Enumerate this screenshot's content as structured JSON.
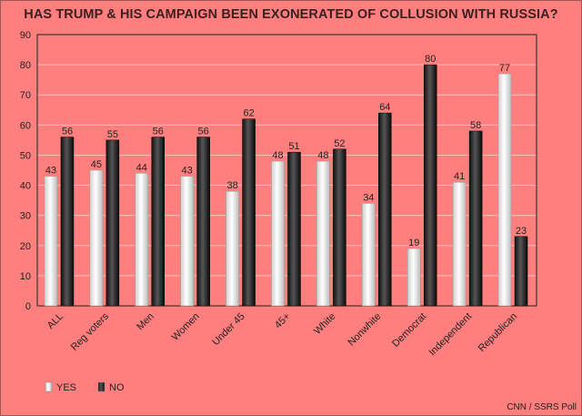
{
  "chart_data": {
    "type": "bar",
    "title": "HAS TRUMP & HIS CAMPAIGN BEEN EXONERATED OF COLLUSION WITH RUSSIA?",
    "xlabel": "",
    "ylabel": "",
    "ylim": [
      0,
      90
    ],
    "yticks": [
      0,
      10,
      20,
      30,
      40,
      50,
      60,
      70,
      80,
      90
    ],
    "grid": true,
    "legend_position": "bottom-left",
    "categories": [
      "ALL",
      "Reg voters",
      "Men",
      "Women",
      "Under 45",
      "45+",
      "White",
      "Nonwhite",
      "Democrat",
      "Independent",
      "Republican"
    ],
    "series": [
      {
        "name": "YES",
        "color": "#ffffff",
        "values": [
          43,
          45,
          44,
          43,
          38,
          48,
          48,
          34,
          19,
          41,
          77
        ]
      },
      {
        "name": "NO",
        "color": "#1a1a1a",
        "values": [
          56,
          55,
          56,
          56,
          62,
          51,
          52,
          64,
          80,
          58,
          23
        ]
      }
    ],
    "source": "CNN / SSRS Poll"
  }
}
